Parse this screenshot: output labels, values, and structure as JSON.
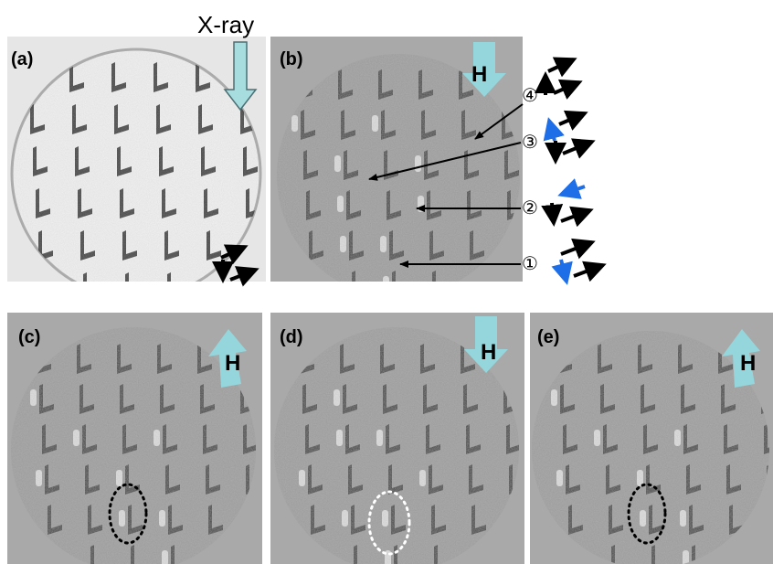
{
  "figure": {
    "xray_label": "X-ray",
    "field_label": "H",
    "panels": [
      {
        "id": "a",
        "label": "(a)"
      },
      {
        "id": "b",
        "label": "(b)"
      },
      {
        "id": "c",
        "label": "(c)"
      },
      {
        "id": "d",
        "label": "(d)"
      },
      {
        "id": "e",
        "label": "(e)"
      }
    ],
    "annotations": [
      "④",
      "③",
      "②",
      "①"
    ],
    "colors": {
      "field_arrow": "#94d6dc",
      "xray_arrow": "#a8dde0",
      "spin_black": "#000000",
      "spin_blue": "#1e6ee8",
      "panel_bg_a": "#e6e6e6",
      "panel_bg_xmcd": "#a9a9a9"
    }
  }
}
